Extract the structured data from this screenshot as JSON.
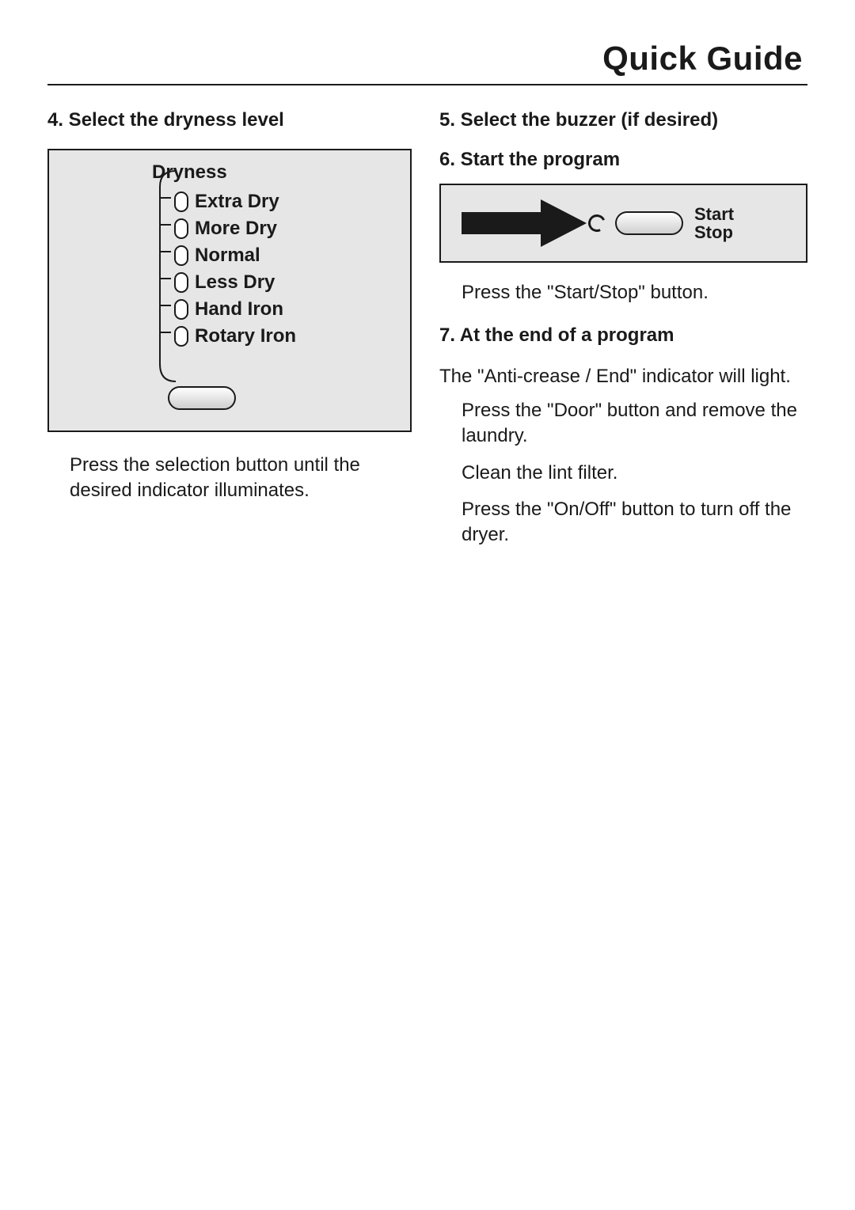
{
  "title": "Quick Guide",
  "colors": {
    "text": "#1a1a1a",
    "panel_bg": "#e6e6e6",
    "panel_border": "#1a1a1a",
    "page_bg": "#ffffff",
    "arrow_fill": "#1a1a1a"
  },
  "left": {
    "step4_heading": "4. Select the dryness level",
    "dryness": {
      "title": "Dryness",
      "options": [
        "Extra Dry",
        "More Dry",
        "Normal",
        "Less Dry",
        "Hand Iron",
        "Rotary Iron"
      ]
    },
    "instruction": "Press the selection button until the desired indicator illuminates."
  },
  "right": {
    "step5_heading": "5. Select the buzzer (if desired)",
    "step6_heading": "6. Start the program",
    "start_button": {
      "line1": "Start",
      "line2": "Stop"
    },
    "start_instruction": "Press the \"Start/Stop\" button.",
    "step7_heading": "7. At the end of a program",
    "step7_intro": "The \"Anti-crease / End\" indicator will light.",
    "step7_substeps": [
      "Press the \"Door\" button and remove the laundry.",
      "Clean the lint filter.",
      "Press the \"On/Off\" button to turn off the dryer."
    ]
  }
}
